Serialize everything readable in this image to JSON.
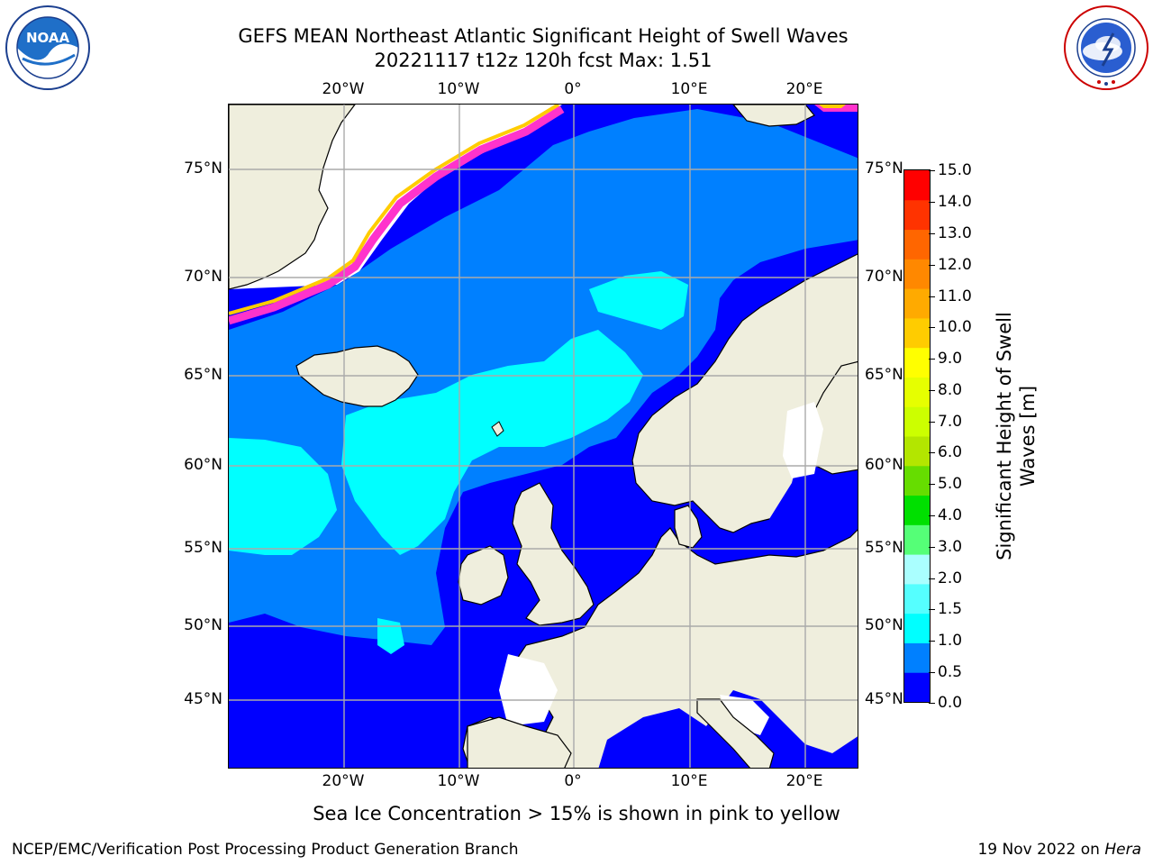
{
  "header": {
    "title_line1": "GEFS MEAN Northeast Atlantic Significant Height of Swell Waves",
    "title_line2": "20221117 t12z 120h fcst   Max: 1.51"
  },
  "logos": {
    "left": {
      "name": "noaa-logo",
      "text": "NOAA",
      "ring_text": "NATIONAL OCEANIC AND ATMOSPHERIC ADMINISTRATION · U.S. DEPARTMENT OF COMMERCE"
    },
    "right": {
      "name": "nws-logo",
      "ring_text": "NATIONAL WEATHER SERVICE"
    }
  },
  "map": {
    "lon_labels": [
      "20°W",
      "10°W",
      "0°",
      "10°E",
      "20°E"
    ],
    "lat_labels_left": [
      "75°N",
      "70°N",
      "65°N",
      "60°N",
      "55°N",
      "50°N",
      "45°N"
    ],
    "lat_labels_right": [
      "75°N",
      "70°N",
      "65°N",
      "60°N",
      "55°N",
      "50°N",
      "45°N"
    ],
    "colors": {
      "land": "#efeedd",
      "ice_missing": "#ffffff",
      "sea_0_05": "#0000ff",
      "sea_05_10": "#0080ff",
      "sea_10_15": "#00ffff",
      "ice_pink": "#ff33cc",
      "ice_yellow": "#ffcc00",
      "grid": "#aaaaaa",
      "coast": "#000000"
    }
  },
  "colorbar": {
    "label": "Significant Height of Swell Waves [m]",
    "ticks": [
      "15.0",
      "14.0",
      "13.0",
      "12.0",
      "11.0",
      "10.0",
      "9.0",
      "8.0",
      "7.0",
      "6.0",
      "5.0",
      "4.0",
      "3.0",
      "2.0",
      "1.5",
      "1.0",
      "0.5",
      "0.0"
    ],
    "colors_bottom_to_top": [
      "#0000ff",
      "#0080ff",
      "#00ffff",
      "#55ffff",
      "#aaffff",
      "#55ff77",
      "#00e000",
      "#66dd00",
      "#b3e600",
      "#ccff00",
      "#e6ff00",
      "#ffff00",
      "#ffcc00",
      "#ffaa00",
      "#ff8800",
      "#ff6600",
      "#ff3300",
      "#ff0000"
    ]
  },
  "footer": {
    "note": "Sea Ice Concentration > 15% is shown in pink to yellow",
    "producer": "NCEP/EMC/Verification Post Processing Product Generation Branch",
    "date_prefix": "19 Nov 2022 on ",
    "host": "Hera"
  }
}
